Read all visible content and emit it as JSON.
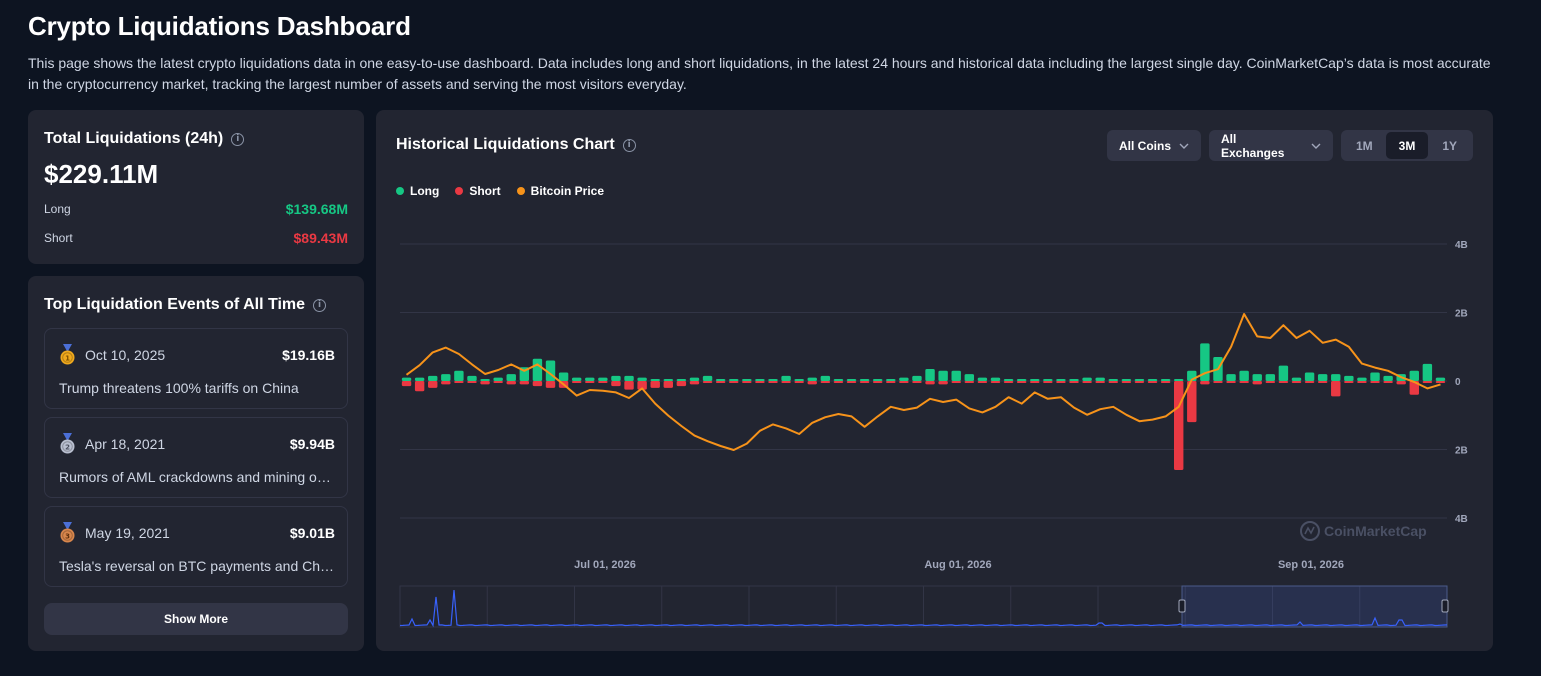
{
  "page": {
    "title": "Crypto Liquidations Dashboard",
    "description": "This page shows the latest crypto liquidations data in one easy-to-use dashboard. Data includes long and short liquidations, in the latest 24 hours and historical data including the largest single day. CoinMarketCap’s data is most accurate in the cryptocurrency market, tracking the largest number of assets and serving the most visitors everyday."
  },
  "total": {
    "title": "Total Liquidations (24h)",
    "value": "$229.11M",
    "long_label": "Long",
    "long_value": "$139.68M",
    "short_label": "Short",
    "short_value": "$89.43M"
  },
  "events": {
    "title": "Top Liquidation Events of All Time",
    "items": [
      {
        "rank": "1",
        "date": "Oct 10, 2025",
        "amount": "$19.16B",
        "description": "Trump threatens 100% tariffs on China",
        "medal_color": "#f0a91d"
      },
      {
        "rank": "2",
        "date": "Apr 18, 2021",
        "amount": "$9.94B",
        "description": "Rumors of AML crackdowns and mining outages",
        "medal_color": "#b9bfd0"
      },
      {
        "rank": "3",
        "date": "May 19, 2021",
        "amount": "$9.01B",
        "description": "Tesla's reversal on BTC payments and China's crackdown",
        "medal_color": "#d8864c"
      }
    ],
    "show_more": "Show More"
  },
  "chart": {
    "title": "Historical Liquidations Chart",
    "coin_filter": "All Coins",
    "exchange_filter": "All Exchanges",
    "ranges": [
      "1M",
      "3M",
      "1Y"
    ],
    "active_range": "3M",
    "legend": [
      {
        "name": "Long",
        "color": "#16c784"
      },
      {
        "name": "Short",
        "color": "#ea3943"
      },
      {
        "name": "Bitcoin Price",
        "color": "#f7931a"
      }
    ],
    "watermark": "CoinMarketCap",
    "icons": {
      "info": "info-icon",
      "dropdown": "chevron-down-icon",
      "medal": "medal-icon",
      "logo": "coinmarketcap-logo-icon"
    }
  },
  "chart_data": {
    "type": "bar",
    "x_ticks": [
      "Jul 01, 2026",
      "Aug 01, 2026",
      "Sep 01, 2026"
    ],
    "y_ticks": [
      "4B",
      "2B",
      "0",
      "2B",
      "4B"
    ],
    "ylim": [
      -4,
      4
    ],
    "y_unit": "B",
    "grid": true,
    "legend_position": "top-left",
    "series": [
      {
        "name": "Long",
        "values": [
          0.1,
          0.1,
          0.15,
          0.2,
          0.3,
          0.15,
          0.05,
          0.1,
          0.2,
          0.4,
          0.65,
          0.6,
          0.25,
          0.1,
          0.1,
          0.1,
          0.15,
          0.15,
          0.1,
          0.05,
          0.05,
          0.05,
          0.1,
          0.15,
          0.05,
          0.05,
          0.05,
          0.05,
          0.05,
          0.15,
          0.05,
          0.1,
          0.15,
          0.05,
          0.05,
          0.05,
          0.05,
          0.05,
          0.1,
          0.15,
          0.35,
          0.3,
          0.3,
          0.2,
          0.1,
          0.1,
          0.05,
          0.05,
          0.05,
          0.05,
          0.05,
          0.05,
          0.1,
          0.1,
          0.05,
          0.05,
          0.05,
          0.05,
          0.05,
          0.05,
          0.3,
          1.1,
          0.7,
          0.2,
          0.3,
          0.2,
          0.2,
          0.45,
          0.1,
          0.25,
          0.2,
          0.2,
          0.15,
          0.1,
          0.25,
          0.15,
          0.2,
          0.3,
          0.5,
          0.1
        ]
      },
      {
        "name": "Short",
        "values": [
          -0.15,
          -0.3,
          -0.2,
          -0.1,
          -0.05,
          -0.05,
          -0.1,
          -0.05,
          -0.1,
          -0.1,
          -0.15,
          -0.2,
          -0.2,
          -0.05,
          -0.05,
          -0.05,
          -0.15,
          -0.25,
          -0.25,
          -0.2,
          -0.2,
          -0.15,
          -0.1,
          -0.05,
          -0.05,
          -0.05,
          -0.05,
          -0.05,
          -0.05,
          -0.05,
          -0.05,
          -0.1,
          -0.05,
          -0.05,
          -0.05,
          -0.05,
          -0.05,
          -0.05,
          -0.05,
          -0.05,
          -0.1,
          -0.1,
          -0.05,
          -0.05,
          -0.05,
          -0.05,
          -0.05,
          -0.05,
          -0.05,
          -0.05,
          -0.05,
          -0.05,
          -0.05,
          -0.05,
          -0.05,
          -0.05,
          -0.05,
          -0.05,
          -0.05,
          -2.6,
          -1.2,
          -0.1,
          -0.05,
          -0.05,
          -0.05,
          -0.1,
          -0.05,
          -0.05,
          -0.05,
          -0.05,
          -0.05,
          -0.45,
          -0.05,
          -0.05,
          -0.05,
          -0.05,
          -0.1,
          -0.4,
          -0.05,
          -0.05
        ]
      },
      {
        "name": "Bitcoin Price",
        "values": [
          0.24,
          0.36,
          0.52,
          0.58,
          0.5,
          0.37,
          0.25,
          0.3,
          0.37,
          0.29,
          0.37,
          0.25,
          0.12,
          -0.02,
          0.05,
          0.04,
          0.02,
          -0.05,
          0.07,
          -0.12,
          -0.27,
          -0.4,
          -0.52,
          -0.59,
          -0.65,
          -0.7,
          -0.62,
          -0.46,
          -0.38,
          -0.43,
          -0.5,
          -0.36,
          -0.29,
          -0.25,
          -0.28,
          -0.41,
          -0.28,
          -0.16,
          -0.2,
          -0.17,
          -0.06,
          -0.1,
          -0.07,
          -0.18,
          -0.23,
          -0.16,
          -0.04,
          -0.12,
          0.02,
          -0.06,
          -0.04,
          -0.17,
          -0.26,
          -0.19,
          -0.16,
          -0.26,
          -0.34,
          -0.32,
          -0.28,
          -0.16,
          0.18,
          0.26,
          0.31,
          0.59,
          1.0,
          0.72,
          0.7,
          0.86,
          0.7,
          0.79,
          0.64,
          0.68,
          0.59,
          0.38,
          0.33,
          0.29,
          0.21,
          0.15,
          0.07,
          0.12
        ]
      }
    ]
  }
}
